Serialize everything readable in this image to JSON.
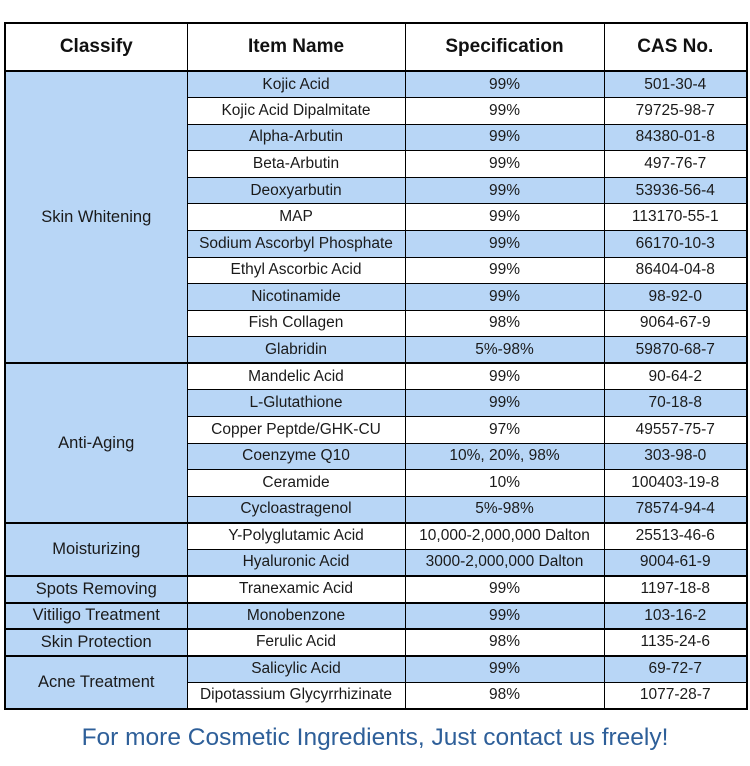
{
  "table": {
    "headers": [
      "Classify",
      "Item Name",
      "Specification",
      "CAS No."
    ],
    "groups": [
      {
        "classify": "Skin Whitening",
        "rows": [
          {
            "item": "Kojic Acid",
            "spec": "99%",
            "cas": "501-30-4"
          },
          {
            "item": "Kojic Acid Dipalmitate",
            "spec": "99%",
            "cas": "79725-98-7"
          },
          {
            "item": "Alpha-Arbutin",
            "spec": "99%",
            "cas": "84380-01-8"
          },
          {
            "item": "Beta-Arbutin",
            "spec": "99%",
            "cas": "497-76-7"
          },
          {
            "item": "Deoxyarbutin",
            "spec": "99%",
            "cas": "53936-56-4"
          },
          {
            "item": "MAP",
            "spec": "99%",
            "cas": "113170-55-1"
          },
          {
            "item": "Sodium Ascorbyl Phosphate",
            "spec": "99%",
            "cas": "66170-10-3"
          },
          {
            "item": "Ethyl Ascorbic Acid",
            "spec": "99%",
            "cas": "86404-04-8"
          },
          {
            "item": "Nicotinamide",
            "spec": "99%",
            "cas": "98-92-0"
          },
          {
            "item": "Fish Collagen",
            "spec": "98%",
            "cas": "9064-67-9"
          },
          {
            "item": "Glabridin",
            "spec": "5%-98%",
            "cas": "59870-68-7"
          }
        ]
      },
      {
        "classify": "Anti-Aging",
        "rows": [
          {
            "item": "Mandelic Acid",
            "spec": "99%",
            "cas": "90-64-2"
          },
          {
            "item": "L-Glutathione",
            "spec": "99%",
            "cas": "70-18-8"
          },
          {
            "item": "Copper Peptde/GHK-CU",
            "spec": "97%",
            "cas": "49557-75-7"
          },
          {
            "item": "Coenzyme Q10",
            "spec": "10%, 20%, 98%",
            "cas": "303-98-0"
          },
          {
            "item": "Ceramide",
            "spec": "10%",
            "cas": "100403-19-8"
          },
          {
            "item": "Cycloastragenol",
            "spec": "5%-98%",
            "cas": "78574-94-4"
          }
        ]
      },
      {
        "classify": "Moisturizing",
        "rows": [
          {
            "item": "Y-Polyglutamic Acid",
            "spec": "10,000-2,000,000 Dalton",
            "cas": "25513-46-6"
          },
          {
            "item": "Hyaluronic Acid",
            "spec": "3000-2,000,000 Dalton",
            "cas": "9004-61-9"
          }
        ]
      },
      {
        "classify": "Spots Removing",
        "rows": [
          {
            "item": "Tranexamic Acid",
            "spec": "99%",
            "cas": "1197-18-8"
          }
        ]
      },
      {
        "classify": "Vitiligo Treatment",
        "rows": [
          {
            "item": "Monobenzone",
            "spec": "99%",
            "cas": "103-16-2"
          }
        ]
      },
      {
        "classify": "Skin Protection",
        "rows": [
          {
            "item": "Ferulic Acid",
            "spec": "98%",
            "cas": "1135-24-6"
          }
        ]
      },
      {
        "classify": "Acne Treatment",
        "rows": [
          {
            "item": "Salicylic Acid",
            "spec": "99%",
            "cas": "69-72-7"
          },
          {
            "item": "Dipotassium Glycyrrhizinate",
            "spec": "98%",
            "cas": "1077-28-7"
          }
        ]
      }
    ]
  },
  "footer": {
    "text": "For more Cosmetic Ingredients, Just contact us freely!"
  },
  "colors": {
    "row_highlight": "#b8d6f6",
    "border": "#000000",
    "header_text": "#111111",
    "body_text": "#1a1a1a",
    "footer_text": "#2e5f99"
  }
}
